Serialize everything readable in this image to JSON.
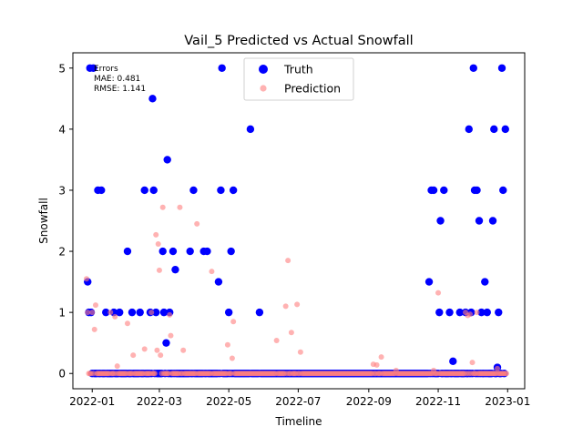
{
  "chart_data": {
    "type": "scatter",
    "title": "Vail_5 Predicted vs Actual Snowfall",
    "xlabel": "Timeline",
    "ylabel": "Snowfall",
    "xlim": [
      "2021-12-15",
      "2023-01-16"
    ],
    "ylim": [
      -0.25,
      5.25
    ],
    "x_ticks": [
      "2022-01",
      "2022-03",
      "2022-05",
      "2022-07",
      "2022-09",
      "2022-11",
      "2023-01"
    ],
    "y_ticks": [
      0,
      1,
      2,
      3,
      4,
      5
    ],
    "grid": false,
    "legend": {
      "placement": "top-center",
      "entries": [
        {
          "label": "Truth",
          "color": "#0000ff"
        },
        {
          "label": "Prediction",
          "color": "#ff7f7f"
        }
      ]
    },
    "annotation": [
      "Errors",
      "MAE: 0.481",
      "RMSE: 1.141"
    ],
    "series": [
      {
        "name": "Truth",
        "color": "#0000ff",
        "points": [
          {
            "x": "2021-12-28",
            "y": 1.5
          },
          {
            "x": "2021-12-29",
            "y": 1
          },
          {
            "x": "2021-12-30",
            "y": 5
          },
          {
            "x": "2021-12-31",
            "y": 1
          },
          {
            "x": "2022-01-02",
            "y": 5
          },
          {
            "x": "2022-01-06",
            "y": 3
          },
          {
            "x": "2022-01-09",
            "y": 3
          },
          {
            "x": "2022-01-13",
            "y": 1
          },
          {
            "x": "2022-01-20",
            "y": 1
          },
          {
            "x": "2022-01-25",
            "y": 1
          },
          {
            "x": "2022-02-01",
            "y": 2
          },
          {
            "x": "2022-02-05",
            "y": 1
          },
          {
            "x": "2022-02-12",
            "y": 1
          },
          {
            "x": "2022-02-16",
            "y": 3
          },
          {
            "x": "2022-02-21",
            "y": 1
          },
          {
            "x": "2022-02-23",
            "y": 4.5
          },
          {
            "x": "2022-02-24",
            "y": 3
          },
          {
            "x": "2022-02-26",
            "y": 1
          },
          {
            "x": "2022-03-04",
            "y": 2
          },
          {
            "x": "2022-03-05",
            "y": 1
          },
          {
            "x": "2022-03-07",
            "y": 0.5
          },
          {
            "x": "2022-03-08",
            "y": 3.5
          },
          {
            "x": "2022-03-10",
            "y": 1
          },
          {
            "x": "2022-03-13",
            "y": 2
          },
          {
            "x": "2022-03-15",
            "y": 1.7
          },
          {
            "x": "2022-03-28",
            "y": 2
          },
          {
            "x": "2022-03-31",
            "y": 3
          },
          {
            "x": "2022-04-09",
            "y": 2
          },
          {
            "x": "2022-04-12",
            "y": 2
          },
          {
            "x": "2022-04-22",
            "y": 1.5
          },
          {
            "x": "2022-04-24",
            "y": 3
          },
          {
            "x": "2022-04-25",
            "y": 5
          },
          {
            "x": "2022-05-01",
            "y": 1
          },
          {
            "x": "2022-05-03",
            "y": 2
          },
          {
            "x": "2022-05-05",
            "y": 3
          },
          {
            "x": "2022-05-20",
            "y": 4
          },
          {
            "x": "2022-05-28",
            "y": 1
          },
          {
            "x": "2022-10-24",
            "y": 1.5
          },
          {
            "x": "2022-10-26",
            "y": 3
          },
          {
            "x": "2022-10-28",
            "y": 3
          },
          {
            "x": "2022-11-02",
            "y": 1
          },
          {
            "x": "2022-11-03",
            "y": 2.5
          },
          {
            "x": "2022-11-06",
            "y": 3
          },
          {
            "x": "2022-11-11",
            "y": 1
          },
          {
            "x": "2022-11-14",
            "y": 0.2
          },
          {
            "x": "2022-11-20",
            "y": 1
          },
          {
            "x": "2022-11-25",
            "y": 1
          },
          {
            "x": "2022-11-28",
            "y": 4
          },
          {
            "x": "2022-11-30",
            "y": 1
          },
          {
            "x": "2022-12-02",
            "y": 5
          },
          {
            "x": "2022-12-03",
            "y": 3
          },
          {
            "x": "2022-12-05",
            "y": 3
          },
          {
            "x": "2022-12-07",
            "y": 2.5
          },
          {
            "x": "2022-12-09",
            "y": 1
          },
          {
            "x": "2022-12-12",
            "y": 1.5
          },
          {
            "x": "2022-12-14",
            "y": 1
          },
          {
            "x": "2022-12-19",
            "y": 2.5
          },
          {
            "x": "2022-12-20",
            "y": 4
          },
          {
            "x": "2022-12-23",
            "y": 0.1
          },
          {
            "x": "2022-12-24",
            "y": 1
          },
          {
            "x": "2022-12-27",
            "y": 5
          },
          {
            "x": "2022-12-28",
            "y": 3
          },
          {
            "x": "2022-12-30",
            "y": 4
          }
        ],
        "zero_range": [
          "2021-12-29",
          "2022-12-30"
        ]
      },
      {
        "name": "Prediction",
        "color": "#ff7f7f",
        "points": [
          {
            "x": "2021-12-27",
            "y": 1.55
          },
          {
            "x": "2021-12-28",
            "y": 1
          },
          {
            "x": "2022-01-01",
            "y": 1
          },
          {
            "x": "2022-01-03",
            "y": 0.72
          },
          {
            "x": "2022-01-04",
            "y": 1.12
          },
          {
            "x": "2022-01-17",
            "y": 1
          },
          {
            "x": "2022-01-21",
            "y": 0.93
          },
          {
            "x": "2022-01-23",
            "y": 0.12
          },
          {
            "x": "2022-02-01",
            "y": 0.82
          },
          {
            "x": "2022-02-06",
            "y": 0.3
          },
          {
            "x": "2022-02-16",
            "y": 0.4
          },
          {
            "x": "2022-02-22",
            "y": 1
          },
          {
            "x": "2022-02-26",
            "y": 2.27
          },
          {
            "x": "2022-02-27",
            "y": 0.38
          },
          {
            "x": "2022-02-28",
            "y": 2.12
          },
          {
            "x": "2022-03-01",
            "y": 1.69
          },
          {
            "x": "2022-03-02",
            "y": 0.3
          },
          {
            "x": "2022-03-04",
            "y": 2.72
          },
          {
            "x": "2022-03-10",
            "y": 0.96
          },
          {
            "x": "2022-03-11",
            "y": 0.62
          },
          {
            "x": "2022-03-19",
            "y": 2.72
          },
          {
            "x": "2022-03-22",
            "y": 0.38
          },
          {
            "x": "2022-04-03",
            "y": 2.45
          },
          {
            "x": "2022-04-16",
            "y": 1.67
          },
          {
            "x": "2022-04-30",
            "y": 0.47
          },
          {
            "x": "2022-05-04",
            "y": 0.25
          },
          {
            "x": "2022-05-05",
            "y": 0.85
          },
          {
            "x": "2022-06-12",
            "y": 0.54
          },
          {
            "x": "2022-06-20",
            "y": 1.1
          },
          {
            "x": "2022-06-22",
            "y": 1.85
          },
          {
            "x": "2022-06-25",
            "y": 0.67
          },
          {
            "x": "2022-06-30",
            "y": 1.13
          },
          {
            "x": "2022-07-03",
            "y": 0.35
          },
          {
            "x": "2022-09-05",
            "y": 0.15
          },
          {
            "x": "2022-09-08",
            "y": 0.14
          },
          {
            "x": "2022-09-12",
            "y": 0.27
          },
          {
            "x": "2022-09-25",
            "y": 0.05
          },
          {
            "x": "2022-10-28",
            "y": 0.05
          },
          {
            "x": "2022-11-01",
            "y": 1.32
          },
          {
            "x": "2022-11-25",
            "y": 1
          },
          {
            "x": "2022-11-27",
            "y": 0.95
          },
          {
            "x": "2022-11-29",
            "y": 0.97
          },
          {
            "x": "2022-12-01",
            "y": 0.18
          },
          {
            "x": "2022-12-05",
            "y": 1
          },
          {
            "x": "2022-12-23",
            "y": 0.08
          }
        ],
        "zero_range": [
          "2021-12-28",
          "2022-12-31"
        ]
      }
    ]
  }
}
